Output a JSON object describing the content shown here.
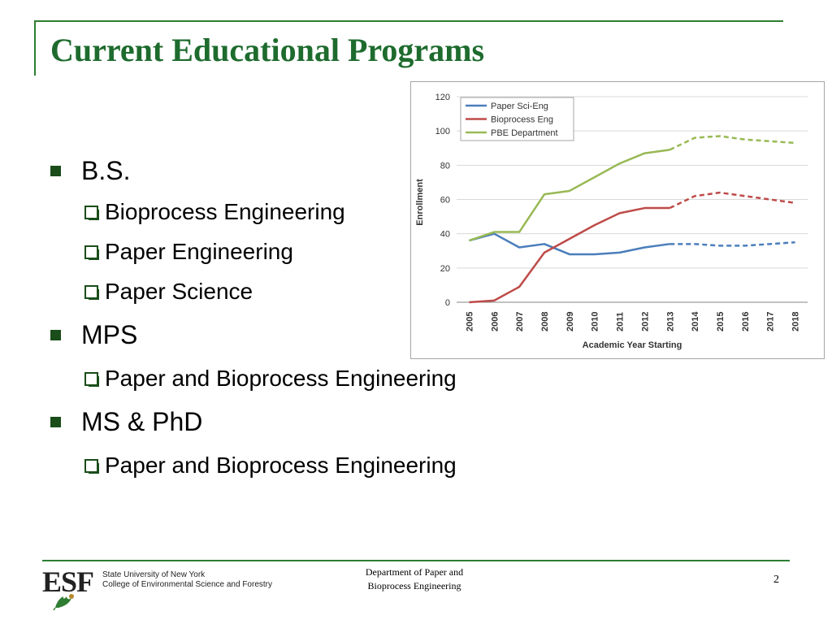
{
  "slide": {
    "title": "Current Educational Programs",
    "page_number": "2"
  },
  "outline": [
    {
      "label": "B.S.",
      "items": [
        "Bioprocess Engineering",
        "Paper Engineering",
        "Paper Science"
      ]
    },
    {
      "label": "MPS",
      "items": [
        "Paper and Bioprocess Engineering"
      ]
    },
    {
      "label": "MS & PhD",
      "items": [
        "Paper and Bioprocess Engineering"
      ]
    }
  ],
  "footer": {
    "logo_text": "ESF",
    "institution_line1": "State University of New York",
    "institution_line2": "College of Environmental Science and Forestry",
    "department_line1": "Department of Paper and",
    "department_line2": "Bioprocess Engineering"
  },
  "chart_data": {
    "type": "line",
    "title": "",
    "xlabel": "Academic Year Starting",
    "ylabel": "Enrollment",
    "ylim": [
      0,
      120
    ],
    "yticks": [
      0,
      20,
      40,
      60,
      80,
      100,
      120
    ],
    "grid": true,
    "legend_position": "top-left",
    "x": [
      "2005",
      "2006",
      "2007",
      "2008",
      "2009",
      "2010",
      "2011",
      "2012",
      "2013",
      "2014",
      "2015",
      "2016",
      "2017",
      "2018"
    ],
    "projected_from": "2013",
    "series": [
      {
        "name": "Paper Sci-Eng",
        "color": "#4a7ebb",
        "values": [
          36,
          40,
          32,
          34,
          28,
          28,
          29,
          32,
          34,
          34,
          33,
          33,
          34,
          35
        ]
      },
      {
        "name": "Bioprocess Eng",
        "color": "#be4b48",
        "values": [
          0,
          1,
          9,
          29,
          37,
          45,
          52,
          55,
          55,
          62,
          64,
          62,
          60,
          58
        ]
      },
      {
        "name": "PBE Department",
        "color": "#98b954",
        "values": [
          36,
          41,
          41,
          63,
          65,
          73,
          81,
          87,
          89,
          96,
          97,
          95,
          94,
          93
        ]
      }
    ]
  }
}
